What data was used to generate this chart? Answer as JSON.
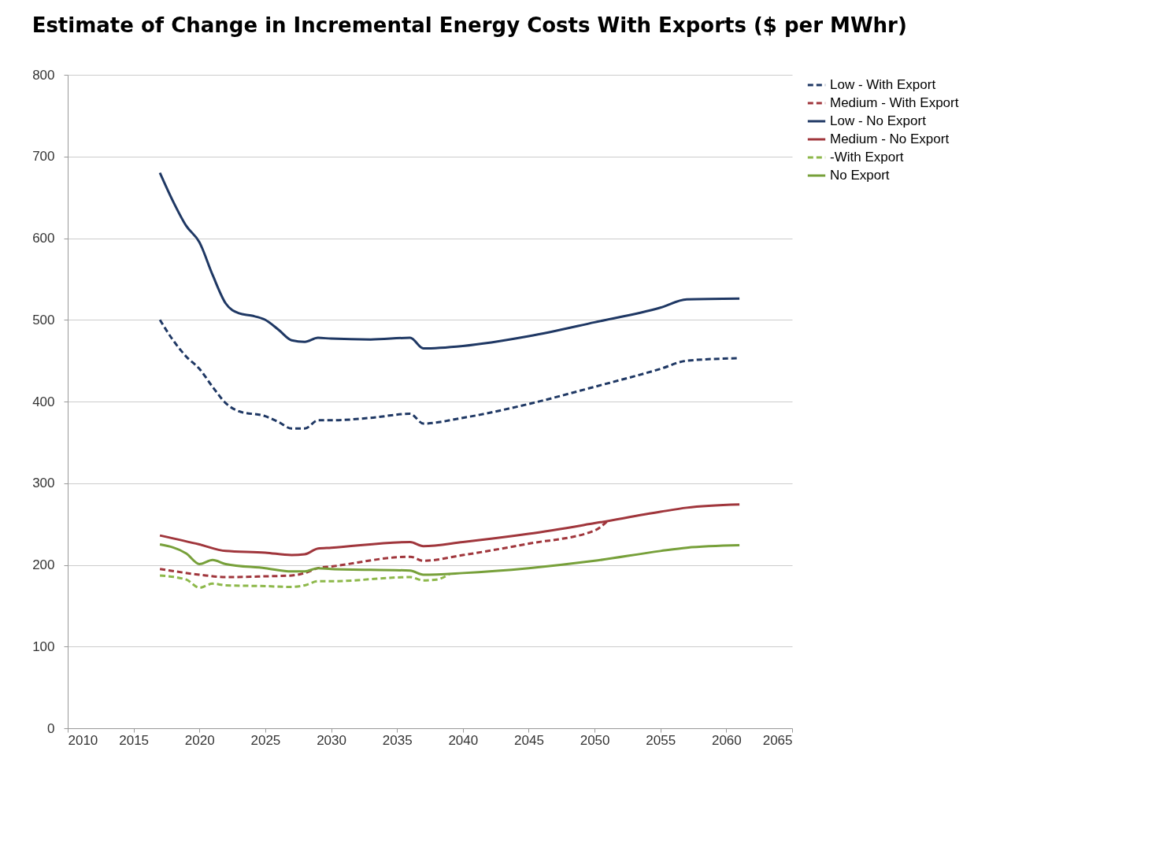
{
  "chart_data": {
    "type": "line",
    "title": "Estimate of  Change in Incremental Energy Costs With Exports ($ per MWhr)",
    "xlim": [
      2010,
      2065
    ],
    "xticks": [
      2010,
      2015,
      2020,
      2025,
      2030,
      2035,
      2040,
      2045,
      2050,
      2055,
      2060,
      2065
    ],
    "ylim": [
      0,
      800
    ],
    "yticks": [
      0,
      100,
      200,
      300,
      400,
      500,
      600,
      700,
      800
    ],
    "grid": "y",
    "legend": "right",
    "marker": "none",
    "series": [
      {
        "name": "Low - With Export",
        "color": "#1f3864",
        "line_style": "dashed",
        "x": [
          2017,
          2018,
          2019,
          2020,
          2021,
          2022,
          2023,
          2025,
          2026,
          2027,
          2028,
          2029,
          2030,
          2033,
          2036,
          2037,
          2040,
          2045,
          2050,
          2055,
          2057,
          2061
        ],
        "values": [
          500,
          475,
          455,
          440,
          418,
          398,
          388,
          382,
          375,
          367,
          367,
          377,
          377,
          380,
          385,
          373,
          380,
          397,
          418,
          440,
          450,
          453
        ]
      },
      {
        "name": "Medium - With Export",
        "color": "#a0363c",
        "line_style": "dashed",
        "x": [
          2017,
          2020,
          2022,
          2025,
          2027,
          2028,
          2029,
          2030,
          2036,
          2037,
          2040,
          2045,
          2050,
          2051
        ],
        "values": [
          195,
          188,
          185,
          186,
          187,
          190,
          196,
          198,
          210,
          205,
          212,
          226,
          242,
          254
        ]
      },
      {
        "name": "Low - No Export",
        "color": "#1f3864",
        "line_style": "solid",
        "x": [
          2017,
          2018,
          2019,
          2020,
          2021,
          2022,
          2023,
          2024,
          2025,
          2026,
          2027,
          2028,
          2029,
          2030,
          2033,
          2036,
          2037,
          2040,
          2045,
          2050,
          2055,
          2057,
          2061
        ],
        "values": [
          680,
          645,
          615,
          595,
          555,
          520,
          508,
          505,
          500,
          488,
          475,
          473,
          478,
          477,
          476,
          478,
          465,
          468,
          480,
          497,
          515,
          525,
          526
        ]
      },
      {
        "name": "Medium - No Export",
        "color": "#a0363c",
        "line_style": "solid",
        "x": [
          2017,
          2020,
          2022,
          2025,
          2027,
          2028,
          2029,
          2030,
          2036,
          2037,
          2040,
          2045,
          2050,
          2055,
          2057,
          2061
        ],
        "values": [
          236,
          225,
          217,
          215,
          212,
          213,
          220,
          221,
          228,
          223,
          228,
          238,
          251,
          265,
          270,
          274
        ]
      },
      {
        "name": "-With Export",
        "color": "#8db84a",
        "line_style": "dashed",
        "x": [
          2017,
          2019,
          2020,
          2021,
          2022,
          2025,
          2027,
          2028,
          2029,
          2030,
          2036,
          2037,
          2038,
          2039
        ],
        "values": [
          187,
          182,
          172,
          177,
          175,
          174,
          173,
          175,
          180,
          180,
          185,
          181,
          182,
          189
        ]
      },
      {
        "name": "No Export",
        "color": "#77a03a",
        "line_style": "solid",
        "x": [
          2017,
          2019,
          2020,
          2021,
          2022,
          2025,
          2027,
          2028,
          2029,
          2030,
          2036,
          2037,
          2040,
          2045,
          2050,
          2055,
          2057,
          2061
        ],
        "values": [
          225,
          214,
          201,
          206,
          201,
          196,
          192,
          192,
          196,
          195,
          193,
          188,
          190,
          196,
          205,
          217,
          221,
          224
        ]
      }
    ]
  }
}
